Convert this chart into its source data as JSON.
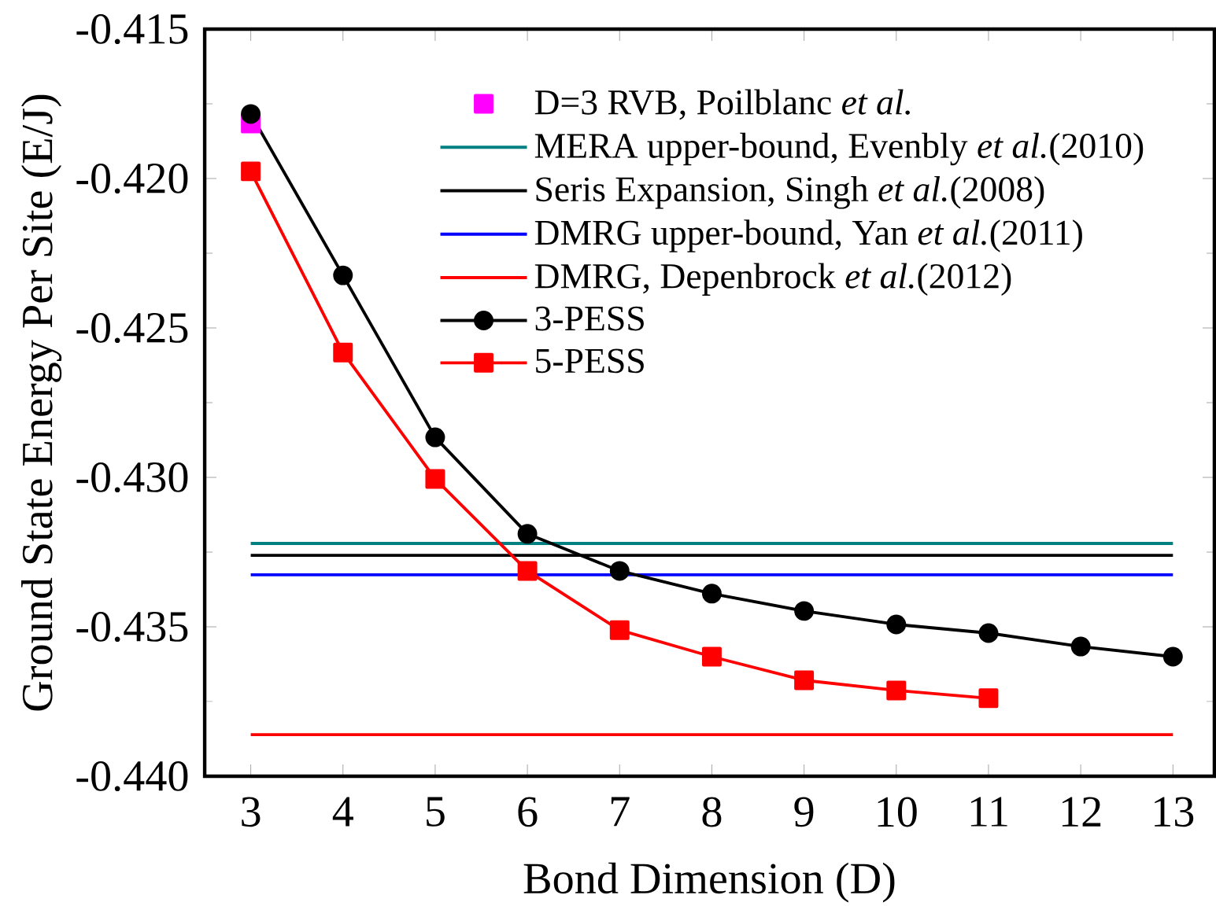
{
  "chart_data": {
    "type": "line",
    "xlabel": "Bond Dimension (D)",
    "ylabel": "Ground State Energy Per Site (E/J)",
    "xlim": [
      2.5,
      13.45
    ],
    "xticks": [
      3,
      4,
      5,
      6,
      7,
      8,
      9,
      10,
      11,
      12,
      13
    ],
    "ylim": [
      -0.44,
      -0.415
    ],
    "yticks": [
      {
        "value": -0.44,
        "label": "-0.440"
      },
      -0.435,
      {
        "value": -0.43,
        "label": "-0.430"
      },
      -0.425,
      {
        "value": -0.42,
        "label": "-0.420"
      },
      -0.415
    ],
    "legend": "top right",
    "line_style": "solid",
    "series": [
      {
        "name": "D=3 RVB, Poilblanc *et al.*",
        "type": "scatter",
        "marker": "square",
        "color": "#ff00ff",
        "x": [
          3
        ],
        "values": [
          -0.41816
        ]
      },
      {
        "name": "MERA upper-bound, Evenbly *et al.*(2010)",
        "marker": "none",
        "color": "#008080",
        "x": [
          3,
          13
        ],
        "values": [
          -0.43221,
          -0.43221
        ]
      },
      {
        "name": "Seris Expansion, Singh *et al.*(2008)",
        "marker": "none",
        "color": "#000000",
        "x": [
          3,
          13
        ],
        "values": [
          -0.43261,
          -0.43261
        ]
      },
      {
        "name": "DMRG upper-bound, Yan *et al.*(2011)",
        "marker": "none",
        "color": "#0000ff",
        "x": [
          3,
          13
        ],
        "values": [
          -0.43326,
          -0.43326
        ]
      },
      {
        "name": "DMRG, Depenbrock *et al.*(2012)",
        "marker": "none",
        "color": "#ff0000",
        "x": [
          3,
          13
        ],
        "values": [
          -0.43861,
          -0.43861
        ]
      },
      {
        "name": "3-PESS",
        "marker": "circle",
        "color": "#000000",
        "x": [
          3,
          4,
          5,
          6,
          7,
          8,
          9,
          10,
          11,
          12,
          13
        ],
        "values": [
          -0.41784,
          -0.42324,
          -0.42866,
          -0.43189,
          -0.43313,
          -0.43389,
          -0.43447,
          -0.43492,
          -0.43521,
          -0.43566,
          -0.436
        ]
      },
      {
        "name": "5-PESS",
        "marker": "square",
        "color": "#ff0000",
        "x": [
          3,
          4,
          5,
          6,
          7,
          8,
          9,
          10,
          11
        ],
        "values": [
          -0.41976,
          -0.42582,
          -0.43005,
          -0.43313,
          -0.43511,
          -0.436,
          -0.43679,
          -0.43713,
          -0.43739
        ]
      }
    ]
  }
}
